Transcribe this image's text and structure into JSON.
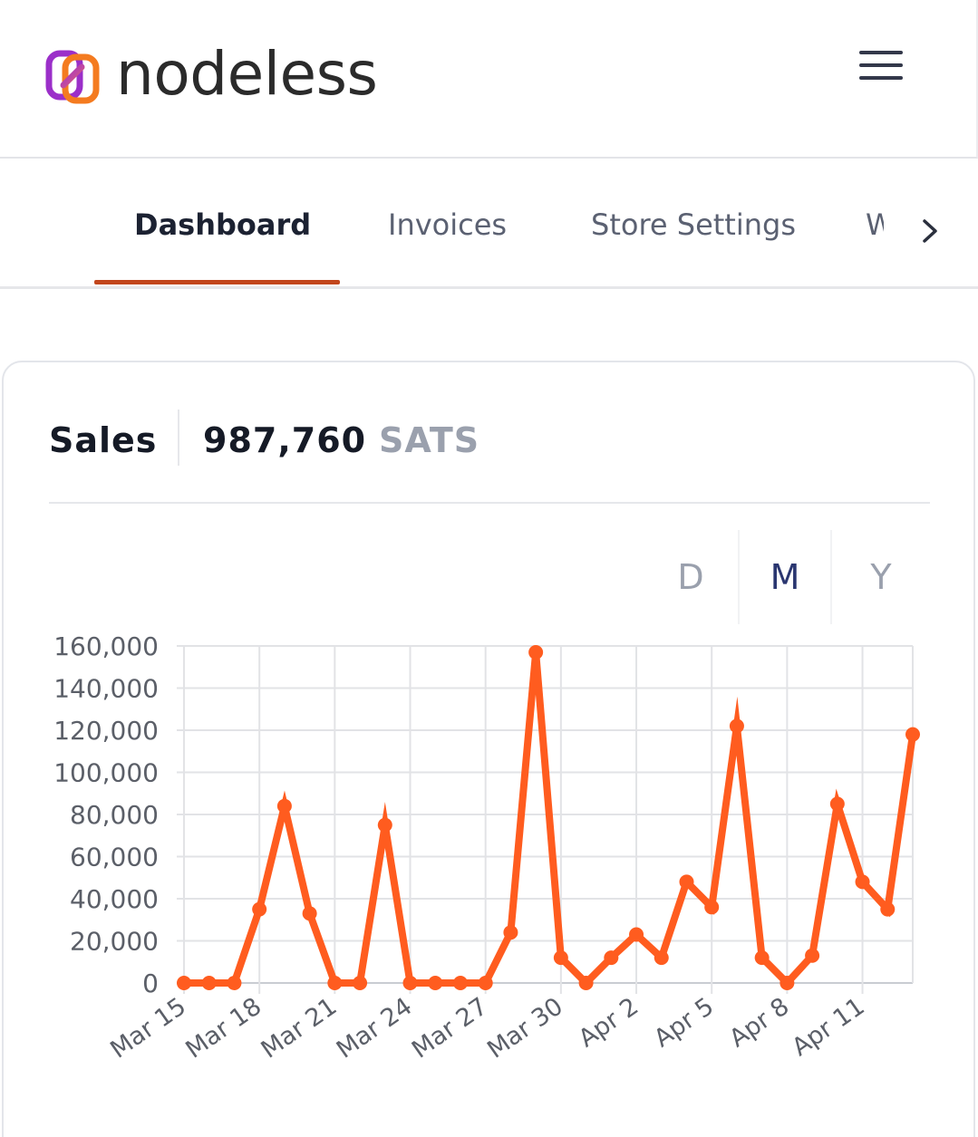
{
  "header": {
    "brand": "nodeless",
    "logo_icon": "nodeless-logo-icon",
    "menu_icon": "hamburger-menu-icon"
  },
  "tabs": [
    {
      "label": "Dashboard",
      "active": true
    },
    {
      "label": "Invoices",
      "active": false
    },
    {
      "label": "Store Settings",
      "active": false
    },
    {
      "label": "W",
      "active": false
    }
  ],
  "tabs_next_icon": "chevron-right-icon",
  "sales": {
    "label": "Sales",
    "value": "987,760",
    "unit": "SATS"
  },
  "periods": [
    {
      "label": "D",
      "active": false
    },
    {
      "label": "M",
      "active": true
    },
    {
      "label": "Y",
      "active": false
    }
  ],
  "colors": {
    "accent": "#ff5c1f",
    "tab_underline": "#c2461c",
    "logo_purple": "#9b2fc9",
    "logo_orange": "#f47b20"
  },
  "chart_data": {
    "type": "line",
    "y_ticks": [
      "160,000",
      "140,000",
      "120,000",
      "100,000",
      "80,000",
      "60,000",
      "40,000",
      "20,000",
      "0"
    ],
    "ylim": [
      0,
      160000
    ],
    "x_tick_labels": [
      "Mar 15",
      "Mar 18",
      "Mar 21",
      "Mar 24",
      "Mar 27",
      "Mar 30",
      "Apr 2",
      "Apr 5",
      "Apr 8",
      "Apr 11"
    ],
    "x": [
      "Mar 15",
      "Mar 16",
      "Mar 17",
      "Mar 18",
      "Mar 19",
      "Mar 20",
      "Mar 21",
      "Mar 22",
      "Mar 23",
      "Mar 24",
      "Mar 25",
      "Mar 26",
      "Mar 27",
      "Mar 28",
      "Mar 29",
      "Mar 30",
      "Mar 31",
      "Apr 1",
      "Apr 2",
      "Apr 3",
      "Apr 4",
      "Apr 5",
      "Apr 6",
      "Apr 7",
      "Apr 8",
      "Apr 9",
      "Apr 10",
      "Apr 11",
      "Apr 12",
      "Apr 13"
    ],
    "values": [
      0,
      0,
      0,
      35000,
      84000,
      33000,
      0,
      0,
      75000,
      0,
      0,
      0,
      0,
      24000,
      157000,
      12000,
      0,
      12000,
      23000,
      12000,
      48000,
      36000,
      122000,
      12000,
      0,
      13000,
      85000,
      48000,
      35000,
      118000
    ],
    "grid": true
  }
}
